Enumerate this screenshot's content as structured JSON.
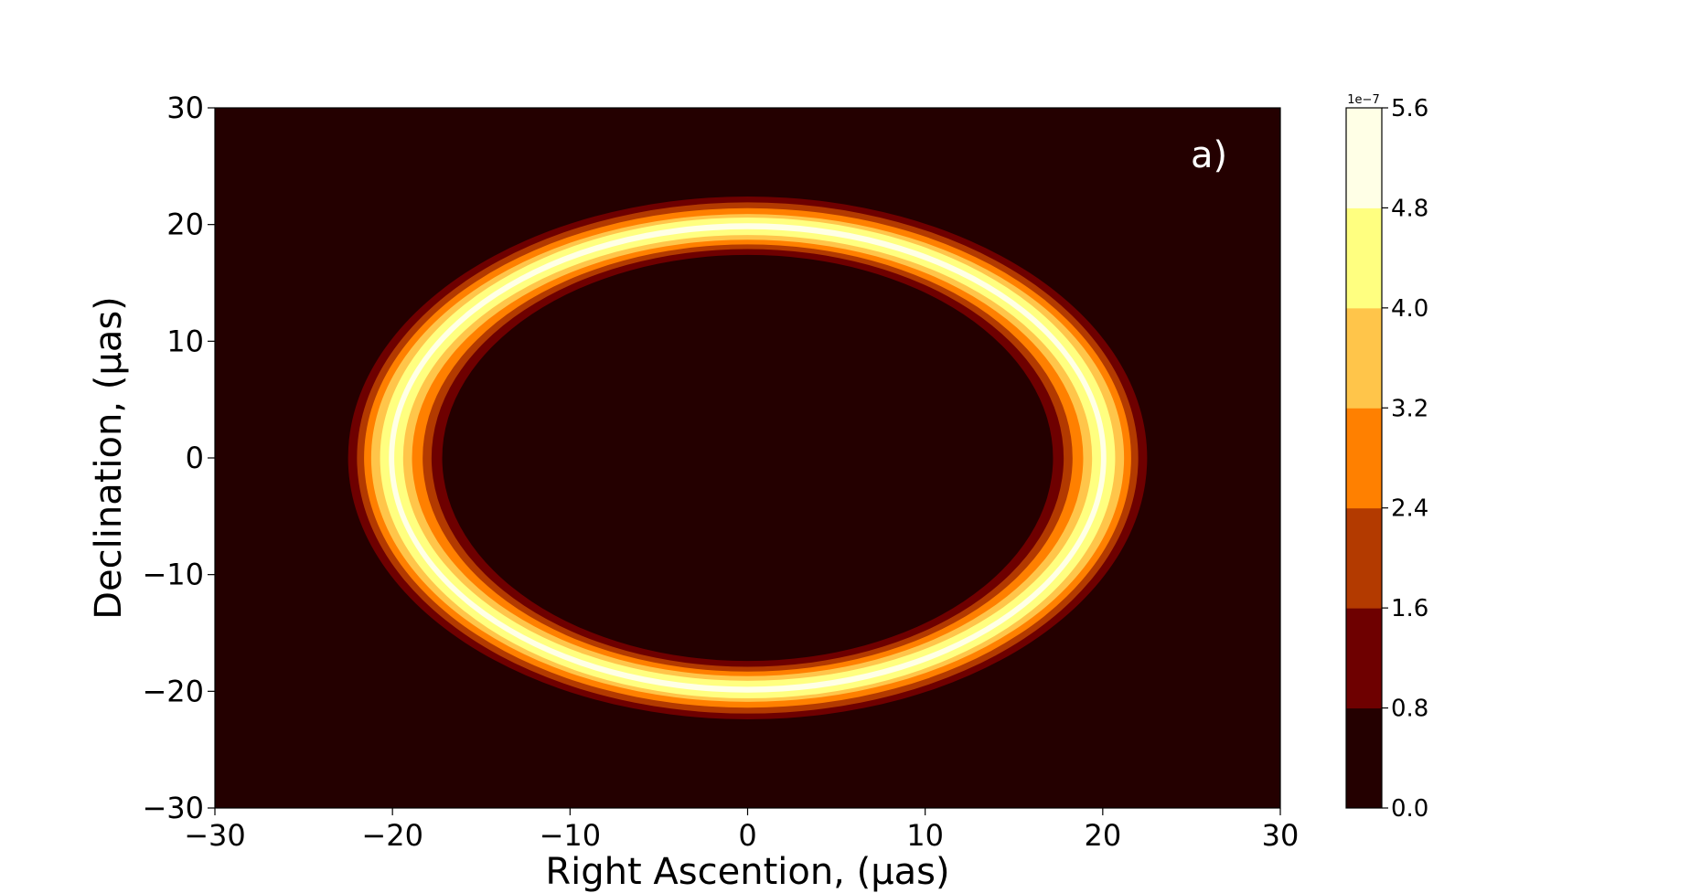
{
  "chart_data": {
    "type": "heatmap",
    "subtype": "filled-contour",
    "annotation": "a)",
    "xlabel": "Right Ascention, (μas)",
    "ylabel": "Declination, (μas)",
    "xlim": [
      -30,
      30
    ],
    "ylim": [
      -30,
      30
    ],
    "xticks": [
      "−30",
      "−20",
      "−10",
      "0",
      "10",
      "20",
      "30"
    ],
    "yticks": [
      "−30",
      "−20",
      "−10",
      "0",
      "10",
      "20",
      "30"
    ],
    "xtick_values": [
      -30,
      -20,
      -10,
      0,
      10,
      20,
      30
    ],
    "ytick_values": [
      -30,
      -20,
      -10,
      0,
      10,
      20,
      30
    ],
    "grid": false,
    "colorbar": {
      "offset_label": "1e−7",
      "tick_values": [
        0.0,
        0.8,
        1.6,
        2.4,
        3.2,
        4.0,
        4.8,
        5.6
      ],
      "tick_labels": [
        "0.0",
        "0.8",
        "1.6",
        "2.4",
        "3.2",
        "4.0",
        "4.8",
        "5.6"
      ],
      "level_colors": [
        "#240000",
        "#6e0000",
        "#b33a00",
        "#ff8000",
        "#ffc54a",
        "#ffff80",
        "#ffffe6"
      ]
    },
    "background_color": "#240000",
    "ring": {
      "description": "elliptical bright ring centered near origin",
      "center": [
        0,
        0
      ],
      "peak_semi_axis_x": 20.8,
      "peak_semi_axis_y": 19.8,
      "peak_value": 5.6,
      "contour_levels": [
        {
          "level_min": 0.8,
          "semi_x_outer": 22.5,
          "semi_y_outer": 22.4,
          "semi_x_inner": 17.2,
          "semi_y_inner": 17.4
        },
        {
          "level_min": 1.6,
          "semi_x_outer": 22.0,
          "semi_y_outer": 21.9,
          "semi_x_inner": 17.8,
          "semi_y_inner": 17.9
        },
        {
          "level_min": 2.4,
          "semi_x_outer": 21.6,
          "semi_y_outer": 21.4,
          "semi_x_inner": 18.3,
          "semi_y_inner": 18.3
        },
        {
          "level_min": 3.2,
          "semi_x_outer": 21.2,
          "semi_y_outer": 20.9,
          "semi_x_inner": 18.9,
          "semi_y_inner": 18.7
        },
        {
          "level_min": 4.0,
          "semi_x_outer": 20.7,
          "semi_y_outer": 20.6,
          "semi_x_inner": 19.4,
          "semi_y_inner": 19.1
        },
        {
          "level_min": 4.8,
          "semi_x_outer": 20.2,
          "semi_y_outer": 20.1,
          "semi_x_inner": 19.9,
          "semi_y_inner": 19.6
        }
      ]
    }
  }
}
